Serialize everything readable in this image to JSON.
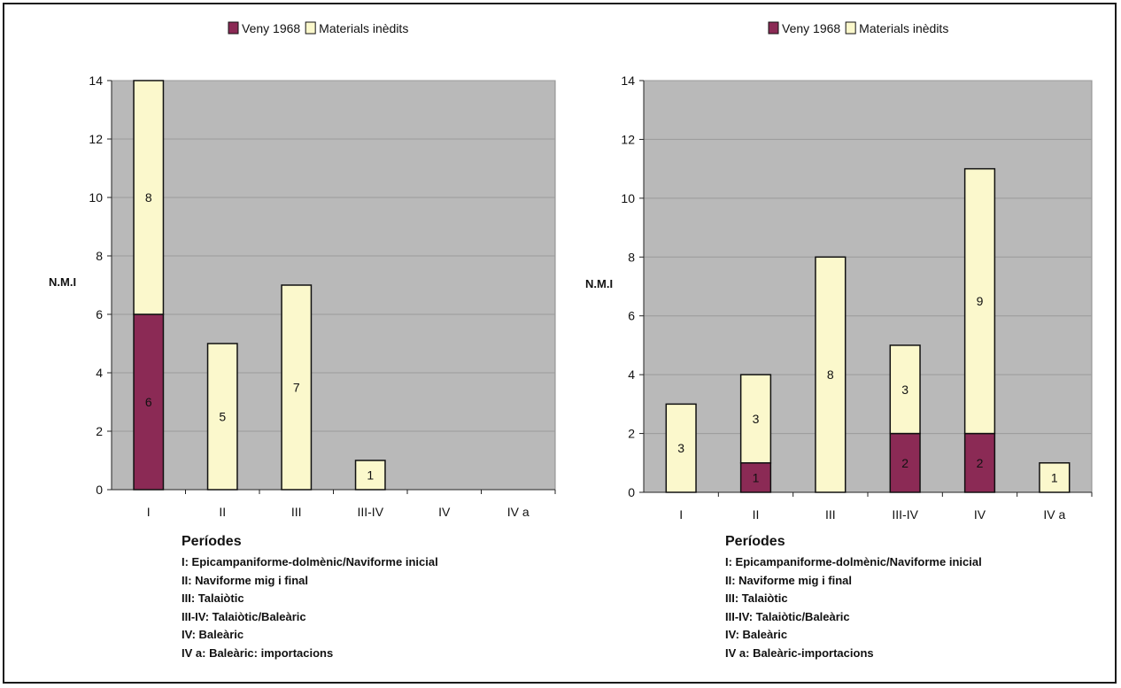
{
  "chart_data": [
    {
      "type": "bar",
      "stacked": true,
      "ylabel": "N.M.I",
      "ylim": [
        0,
        14
      ],
      "yticks": [
        0,
        2,
        4,
        6,
        8,
        10,
        12,
        14
      ],
      "categories": [
        "I",
        "II",
        "III",
        "III-IV",
        "IV",
        "IV a"
      ],
      "series": [
        {
          "name": "Veny 1968",
          "color": "#8b2a55",
          "values": [
            6,
            0,
            0,
            0,
            0,
            0
          ]
        },
        {
          "name": "Materials inèdits",
          "color": "#fbf8cc",
          "values": [
            8,
            5,
            7,
            1,
            0,
            0
          ]
        }
      ],
      "plot_background": "#b9b9b9",
      "legend": "top",
      "notes_title": "Períodes",
      "notes": [
        "I: Epicampaniforme-dolmènic/Naviforme inicial",
        "II: Naviforme mig i final",
        "III: Talaiòtic",
        "III-IV: Talaiòtic/Baleàric",
        "IV: Baleàric",
        "IV a: Baleàric: importacions"
      ]
    },
    {
      "type": "bar",
      "stacked": true,
      "ylabel": "N.M.I",
      "ylim": [
        0,
        14
      ],
      "yticks": [
        0,
        2,
        4,
        6,
        8,
        10,
        12,
        14
      ],
      "categories": [
        "I",
        "II",
        "III",
        "III-IV",
        "IV",
        "IV a"
      ],
      "series": [
        {
          "name": "Veny 1968",
          "color": "#8b2a55",
          "values": [
            0,
            1,
            0,
            2,
            2,
            0
          ]
        },
        {
          "name": "Materials inèdits",
          "color": "#fbf8cc",
          "values": [
            3,
            3,
            8,
            3,
            9,
            1
          ]
        }
      ],
      "plot_background": "#b9b9b9",
      "legend": "top",
      "notes_title": "Períodes",
      "notes": [
        "I: Epicampaniforme-dolmènic/Naviforme inicial",
        "II: Naviforme mig i final",
        "III: Talaiòtic",
        "III-IV: Talaiòtic/Baleàric",
        "IV: Baleàric",
        "IV a: Baleàric-importacions"
      ]
    }
  ]
}
